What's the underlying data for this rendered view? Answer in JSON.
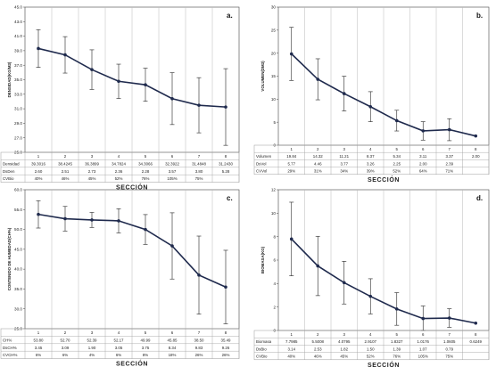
{
  "chart_data": [
    {
      "type": "line",
      "panel_label": "a.",
      "xlabel": "SECCIÓN",
      "ylabel": "DENSIDAD(KG/M3)",
      "categories": [
        "1",
        "2",
        "3",
        "4",
        "5",
        "6",
        "7",
        "8"
      ],
      "values": [
        39.3016,
        38.4245,
        36.3899,
        34.7824,
        34.3066,
        32.3922,
        31.4848,
        31.243
      ],
      "errors": [
        2.6,
        2.51,
        2.73,
        2.36,
        2.28,
        3.57,
        3.8,
        5.28
      ],
      "ylim": [
        25.0,
        45.0
      ],
      "yticks": [
        "25.0",
        "27.0",
        "29.0",
        "31.0",
        "33.0",
        "35.0",
        "37.0",
        "39.0",
        "41.0",
        "43.0",
        "45.0"
      ],
      "grid": "vertical",
      "table": [
        {
          "label": "Densidad",
          "cells": [
            "39.3016",
            "38.4245",
            "36.3899",
            "34.7824",
            "34.3066",
            "32.3922",
            "31.4848",
            "31.2430"
          ]
        },
        {
          "label": "DsDen",
          "cells": [
            "2.60",
            "2.51",
            "2.73",
            "2.36",
            "2.28",
            "3.57",
            "3.80",
            "5.28"
          ]
        },
        {
          "label": "CVBio",
          "cells": [
            "40%",
            "46%",
            "45%",
            "52%",
            "76%",
            "105%",
            "75%",
            ""
          ]
        }
      ]
    },
    {
      "type": "line",
      "panel_label": "b.",
      "xlabel": "SECCIÓN",
      "ylabel": "VOLUMEN(DM3)",
      "categories": [
        "1",
        "2",
        "3",
        "4",
        "5",
        "6",
        "7",
        "8"
      ],
      "values": [
        19.84,
        14.32,
        11.21,
        8.37,
        5.34,
        3.11,
        3.37,
        2.0
      ],
      "errors": [
        5.77,
        4.46,
        3.77,
        3.26,
        2.25,
        2.0,
        2.39,
        0
      ],
      "ylim": [
        0,
        30
      ],
      "yticks": [
        "0",
        "5",
        "10",
        "15",
        "20",
        "25",
        "30"
      ],
      "grid": "vertical",
      "table": [
        {
          "label": "Volumen",
          "cells": [
            "19.84",
            "14.32",
            "11.21",
            "8.37",
            "5.34",
            "3.11",
            "3.37",
            "2.00"
          ]
        },
        {
          "label": "DsVol",
          "cells": [
            "5.77",
            "4.46",
            "3.77",
            "3.26",
            "2.25",
            "2.00",
            "2.39",
            ""
          ]
        },
        {
          "label": "CVVol",
          "cells": [
            "29%",
            "31%",
            "34%",
            "39%",
            "52%",
            "64%",
            "71%",
            ""
          ]
        }
      ]
    },
    {
      "type": "line",
      "panel_label": "c.",
      "xlabel": "SECCIÓN",
      "ylabel": "CONTENIDO DE HUMEDAD(CH%)",
      "categories": [
        "1",
        "2",
        "3",
        "4",
        "5",
        "6",
        "7",
        "8"
      ],
      "values": [
        53.8,
        52.7,
        52.39,
        52.17,
        49.99,
        45.85,
        38.5,
        35.49
      ],
      "errors": [
        3.45,
        3.09,
        1.9,
        3.05,
        3.75,
        8.34,
        9.83,
        9.26
      ],
      "ylim": [
        25.0,
        60.0
      ],
      "yticks": [
        "25.0",
        "30.0",
        "35.0",
        "40.0",
        "45.0",
        "50.0",
        "55.0",
        "60.0"
      ],
      "grid": "vertical",
      "table": [
        {
          "label": "CH%",
          "cells": [
            "53.80",
            "52.70",
            "52.39",
            "52.17",
            "49.99",
            "45.85",
            "38.50",
            "35.49"
          ]
        },
        {
          "label": "DsCH%",
          "cells": [
            "3.45",
            "3.09",
            "1.90",
            "3.05",
            "3.75",
            "8.34",
            "9.83",
            "9.26"
          ]
        },
        {
          "label": "CVCH%",
          "cells": [
            "6%",
            "6%",
            "4%",
            "6%",
            "8%",
            "18%",
            "26%",
            "26%"
          ]
        }
      ]
    },
    {
      "type": "line",
      "panel_label": "d.",
      "xlabel": "SECCIÓN",
      "ylabel": "BIOMASA(KG)",
      "categories": [
        "1",
        "2",
        "3",
        "4",
        "5",
        "6",
        "7",
        "8"
      ],
      "values": [
        7.7985,
        5.5008,
        4.0795,
        2.9107,
        1.8327,
        1.0176,
        1.0605,
        0.6249
      ],
      "errors": [
        3.14,
        2.53,
        1.82,
        1.5,
        1.39,
        1.07,
        0.79,
        0
      ],
      "ylim": [
        0,
        12
      ],
      "yticks": [
        "0",
        "2",
        "4",
        "6",
        "8",
        "10",
        "12"
      ],
      "grid": "vertical",
      "table": [
        {
          "label": "Biomasa",
          "cells": [
            "7.7985",
            "5.5008",
            "4.0795",
            "2.9107",
            "1.8327",
            "1.0176",
            "1.0605",
            "0.6249"
          ]
        },
        {
          "label": "DsBio",
          "cells": [
            "3.14",
            "2.53",
            "1.82",
            "1.50",
            "1.39",
            "1.07",
            "0.79",
            ""
          ]
        },
        {
          "label": "CVBio",
          "cells": [
            "40%",
            "46%",
            "45%",
            "52%",
            "76%",
            "105%",
            "75%",
            ""
          ]
        }
      ]
    }
  ],
  "colors": {
    "line": "#1f2a4d",
    "error_bar": "#222222",
    "grid": "#b8b8b8",
    "frame": "#444444",
    "table_border": "#999999"
  }
}
